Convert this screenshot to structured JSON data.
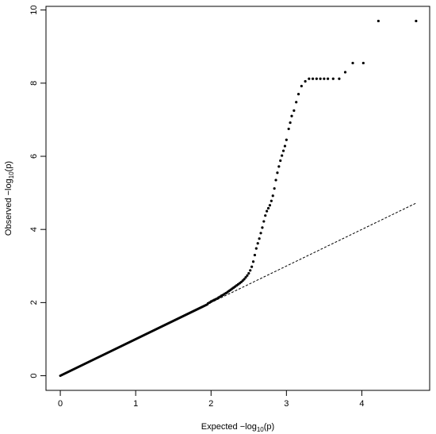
{
  "chart_data": {
    "type": "scatter",
    "title": "",
    "xlabel": {
      "pre": "Expected −log",
      "sub": "10",
      "post": "(p)"
    },
    "ylabel": {
      "pre": "Observed −log",
      "sub": "10",
      "post": "(p)"
    },
    "xlim": [
      -0.19,
      4.9
    ],
    "ylim": [
      -0.4,
      10.1
    ],
    "xticks": [
      0,
      1,
      2,
      3,
      4
    ],
    "yticks": [
      0,
      2,
      4,
      6,
      8,
      10
    ],
    "x_tick_labels": [
      "0",
      "1",
      "2",
      "3",
      "4"
    ],
    "y_tick_labels": [
      "0",
      "2",
      "4",
      "6",
      "8",
      "10"
    ],
    "grid": false,
    "legend": "none",
    "point_color": "#000000",
    "reference_line": {
      "style": "dashed",
      "from": [
        0,
        0
      ],
      "to": [
        4.72,
        4.72
      ]
    },
    "dense_segment": {
      "from": 0.0,
      "to": 1.95,
      "slope": 1.0
    },
    "series": [
      {
        "points": [
          [
            1.96,
            1.98
          ],
          [
            1.98,
            2.0
          ],
          [
            2.0,
            2.03
          ],
          [
            2.02,
            2.05
          ],
          [
            2.04,
            2.07
          ],
          [
            2.06,
            2.09
          ],
          [
            2.08,
            2.11
          ],
          [
            2.1,
            2.14
          ],
          [
            2.12,
            2.16
          ],
          [
            2.14,
            2.19
          ],
          [
            2.16,
            2.21
          ],
          [
            2.18,
            2.24
          ],
          [
            2.2,
            2.26
          ],
          [
            2.22,
            2.29
          ],
          [
            2.24,
            2.32
          ],
          [
            2.26,
            2.35
          ],
          [
            2.28,
            2.38
          ],
          [
            2.3,
            2.41
          ],
          [
            2.32,
            2.44
          ],
          [
            2.34,
            2.47
          ],
          [
            2.36,
            2.5
          ],
          [
            2.38,
            2.53
          ],
          [
            2.4,
            2.56
          ],
          [
            2.42,
            2.6
          ],
          [
            2.44,
            2.64
          ],
          [
            2.46,
            2.69
          ],
          [
            2.48,
            2.74
          ],
          [
            2.5,
            2.8
          ],
          [
            2.52,
            2.88
          ],
          [
            2.54,
            2.98
          ],
          [
            2.56,
            3.12
          ],
          [
            2.58,
            3.3
          ],
          [
            2.6,
            3.48
          ],
          [
            2.62,
            3.62
          ],
          [
            2.64,
            3.75
          ],
          [
            2.66,
            3.9
          ],
          [
            2.68,
            4.05
          ],
          [
            2.7,
            4.22
          ],
          [
            2.72,
            4.38
          ],
          [
            2.74,
            4.5
          ],
          [
            2.76,
            4.58
          ],
          [
            2.78,
            4.66
          ],
          [
            2.8,
            4.78
          ],
          [
            2.82,
            4.92
          ],
          [
            2.84,
            5.12
          ],
          [
            2.86,
            5.35
          ],
          [
            2.88,
            5.55
          ],
          [
            2.9,
            5.72
          ],
          [
            2.92,
            5.88
          ],
          [
            2.94,
            6.02
          ],
          [
            2.96,
            6.15
          ],
          [
            2.98,
            6.28
          ],
          [
            3.0,
            6.45
          ],
          [
            3.03,
            6.75
          ],
          [
            3.05,
            6.92
          ],
          [
            3.07,
            7.1
          ],
          [
            3.1,
            7.25
          ],
          [
            3.13,
            7.48
          ],
          [
            3.16,
            7.7
          ],
          [
            3.2,
            7.92
          ],
          [
            3.25,
            8.05
          ],
          [
            3.3,
            8.12
          ],
          [
            3.35,
            8.12
          ],
          [
            3.4,
            8.12
          ],
          [
            3.45,
            8.12
          ],
          [
            3.5,
            8.12
          ],
          [
            3.55,
            8.12
          ],
          [
            3.62,
            8.12
          ],
          [
            3.7,
            8.12
          ],
          [
            3.78,
            8.3
          ],
          [
            3.88,
            8.55
          ],
          [
            4.02,
            8.55
          ],
          [
            4.22,
            9.7
          ],
          [
            4.72,
            9.7
          ]
        ]
      }
    ]
  }
}
